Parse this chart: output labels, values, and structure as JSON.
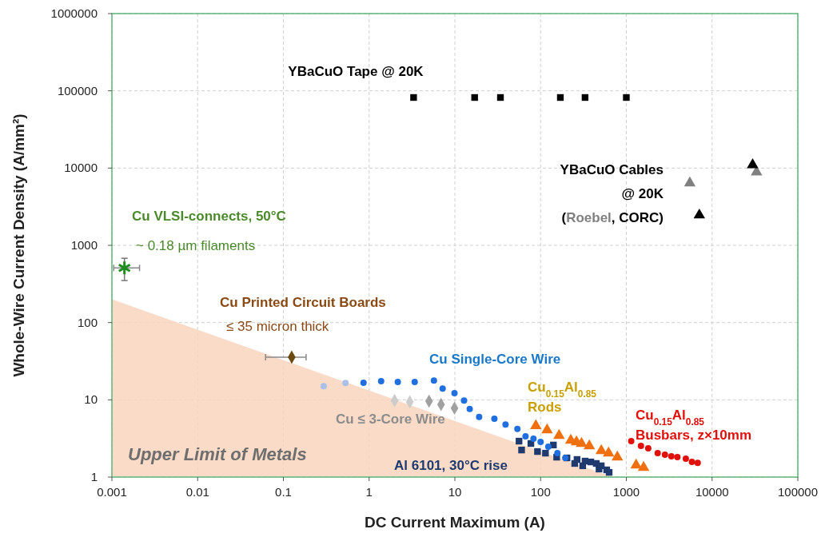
{
  "chart_data": {
    "type": "scatter",
    "xlabel": "DC Current Maximum (A)",
    "ylabel": "Whole-Wire Current Density (A/mm²)",
    "log": "xy",
    "xlim": [
      0.001,
      100000
    ],
    "ylim": [
      1,
      1000000
    ],
    "xticks": [
      {
        "value": 0.001,
        "label": "0.001"
      },
      {
        "value": 0.01,
        "label": "0.01"
      },
      {
        "value": 0.1,
        "label": "0.1"
      },
      1,
      10,
      100,
      1000,
      10000,
      100000
    ],
    "yticks": [
      1,
      10,
      100,
      1000,
      10000,
      100000,
      1000000
    ],
    "grid": true,
    "annotations": [
      "~ 0.18 µm filaments",
      "≤ 35 micron thick",
      "YBaCuO Cables",
      "@ 20K",
      "(Roebel, CORC)"
    ],
    "series": [
      {
        "type": "area",
        "name": "Upper Limit of Metals",
        "color": "#f8d5be",
        "x": [
          0.001,
          700
        ],
        "values": [
          200,
          1
        ]
      },
      {
        "name": "YBaCuO Tape @ 20K",
        "color": "#000000",
        "marker": "square",
        "x": [
          3.3,
          17,
          34,
          170,
          330,
          1000
        ],
        "values": [
          82000,
          82000,
          82000,
          82000,
          82000,
          82000
        ]
      },
      {
        "color": "#808080",
        "marker": "triangle",
        "x": [
          5500,
          33000
        ],
        "values": [
          6400,
          8900
        ]
      },
      {
        "color": "#000000",
        "marker": "triangle",
        "x": [
          29700,
          7100
        ],
        "values": [
          11000,
          2460
        ]
      },
      {
        "name": "Cu VLSI-connects, 50°C",
        "color": "#1e8c1e",
        "marker": "cross",
        "x": [
          0.0014
        ],
        "values": [
          510
        ],
        "errors": [
          [
            350,
            680
          ]
        ],
        "xerrors": [
          [
            0.00105,
            0.0021
          ]
        ]
      },
      {
        "name": "Cu Printed Circuit Boards",
        "color": "#6b4a12",
        "marker": "diamond",
        "x": [
          0.125
        ],
        "values": [
          35.7
        ],
        "xerrors": [
          [
            0.062,
            0.184
          ]
        ]
      },
      {
        "name": "Al 6101, 30°C rise",
        "color": "#1f3a6e",
        "marker": "square",
        "x": [
          56,
          60,
          77,
          92,
          114,
          141,
          154,
          203,
          250,
          266,
          310,
          330,
          385,
          446,
          480,
          510,
          590,
          630
        ],
        "values": [
          2.92,
          2.24,
          2.72,
          2.14,
          2.04,
          2.6,
          1.81,
          1.77,
          1.5,
          1.69,
          1.4,
          1.61,
          1.57,
          1.5,
          1.27,
          1.4,
          1.24,
          1.15
        ]
      },
      {
        "name": "Cu Single-Core Wire",
        "color": "#1f6fe0",
        "marker": "circle",
        "x": [
          0.295,
          0.53,
          0.86,
          1.38,
          2.16,
          3.4,
          5.7,
          7.2,
          9.9,
          12.8,
          14.9,
          19.2,
          28.9,
          39,
          53.6,
          66.7,
          82.6,
          100,
          123,
          157,
          194
        ],
        "values": [
          15,
          16.5,
          16.6,
          17.4,
          17,
          17,
          17.8,
          14,
          12.2,
          9.8,
          7.6,
          6.0,
          5.7,
          4.8,
          4.2,
          3.37,
          3.13,
          2.85,
          2.47,
          2.04,
          1.77
        ],
        "colors": [
          "#a9c0e8",
          "#a9c0e8",
          null,
          null,
          null,
          null,
          null,
          null,
          null,
          null,
          null,
          null,
          null,
          null,
          null,
          null,
          null,
          null,
          null,
          null,
          null
        ]
      },
      {
        "name": "Cu ≤ 3-Core Wire",
        "color": "#a0a0a0",
        "marker": "diamond",
        "x": [
          1.98,
          2.98,
          5.0,
          6.9,
          9.9
        ],
        "values": [
          9.8,
          9.4,
          9.6,
          8.7,
          7.8
        ],
        "colors": [
          "#cccccc",
          "#cccccc",
          null,
          null,
          null
        ]
      },
      {
        "name": "Cu$_{0.15}$Al$_{0.85}$ Rods",
        "color": "#f07010",
        "marker": "triangle",
        "x": [
          88,
          119,
          164,
          225,
          262,
          300,
          370,
          510,
          620,
          785,
          1300,
          1590
        ],
        "values": [
          4.6,
          4.07,
          3.45,
          2.99,
          2.85,
          2.72,
          2.53,
          2.19,
          2.04,
          1.81,
          1.43,
          1.33
        ]
      },
      {
        "name": "Cu$_{0.15}$Al$_{0.85}$ Busbars, z×10mm",
        "color": "#e0100a",
        "marker": "circle",
        "x": [
          1140,
          1480,
          1800,
          2320,
          2820,
          3350,
          3940,
          4940,
          5820,
          6800
        ],
        "values": [
          2.92,
          2.53,
          2.36,
          2.04,
          1.95,
          1.86,
          1.81,
          1.73,
          1.57,
          1.53
        ]
      }
    ]
  }
}
